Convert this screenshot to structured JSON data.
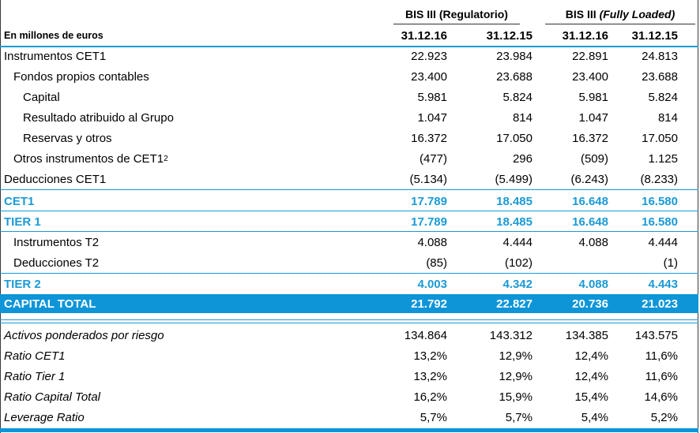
{
  "header": {
    "unit_label": "En millones de euros",
    "group_regulatory": "BIS III (Regulatorio)",
    "group_fully_loaded_prefix": "BIS III ",
    "group_fully_loaded_italic": "(Fully Loaded)",
    "dates": [
      "31.12.16",
      "31.12.15",
      "31.12.16",
      "31.12.15"
    ]
  },
  "rows": [
    {
      "label": "Instrumentos CET1",
      "values": [
        "22.923",
        "23.984",
        "22.891",
        "24.813"
      ]
    },
    {
      "label": "Fondos propios contables",
      "values": [
        "23.400",
        "23.688",
        "23.400",
        "23.688"
      ]
    },
    {
      "label": "Capital",
      "values": [
        "5.981",
        "5.824",
        "5.981",
        "5.824"
      ]
    },
    {
      "label": "Resultado atribuido al Grupo",
      "values": [
        "1.047",
        "814",
        "1.047",
        "814"
      ]
    },
    {
      "label": "Reservas y otros",
      "values": [
        "16.372",
        "17.050",
        "16.372",
        "17.050"
      ]
    },
    {
      "label": "Otros instrumentos de CET1",
      "sup": "2",
      "values": [
        "(477)",
        "296",
        "(509)",
        "1.125"
      ]
    },
    {
      "label": "Deducciones CET1",
      "values": [
        "(5.134)",
        "(5.499)",
        "(6.243)",
        "(8.233)"
      ]
    },
    {
      "label": "CET1",
      "values": [
        "17.789",
        "18.485",
        "16.648",
        "16.580"
      ]
    },
    {
      "label": "TIER 1",
      "values": [
        "17.789",
        "18.485",
        "16.648",
        "16.580"
      ]
    },
    {
      "label": "Instrumentos T2",
      "values": [
        "4.088",
        "4.444",
        "4.088",
        "4.444"
      ]
    },
    {
      "label": "Deducciones T2",
      "values": [
        "(85)",
        "(102)",
        "",
        "(1)"
      ]
    },
    {
      "label": "TIER 2",
      "values": [
        "4.003",
        "4.342",
        "4.088",
        "4.443"
      ]
    },
    {
      "label": "CAPITAL TOTAL",
      "values": [
        "21.792",
        "22.827",
        "20.736",
        "21.023"
      ]
    },
    {
      "label": "Activos ponderados por riesgo",
      "values": [
        "134.864",
        "143.312",
        "134.385",
        "143.575"
      ]
    },
    {
      "label": "Ratio CET1",
      "values": [
        "13,2%",
        "12,9%",
        "12,4%",
        "11,6%"
      ]
    },
    {
      "label": "Ratio Tier 1",
      "values": [
        "13,2%",
        "12,9%",
        "12,4%",
        "11,6%"
      ]
    },
    {
      "label": "Ratio Capital Total",
      "values": [
        "16,2%",
        "15,9%",
        "15,4%",
        "14,6%"
      ]
    },
    {
      "label": "Leverage Ratio",
      "values": [
        "5,7%",
        "5,7%",
        "5,4%",
        "5,2%"
      ]
    }
  ],
  "colors": {
    "accent": "#1a9ad6",
    "band": "#0d95d8"
  }
}
